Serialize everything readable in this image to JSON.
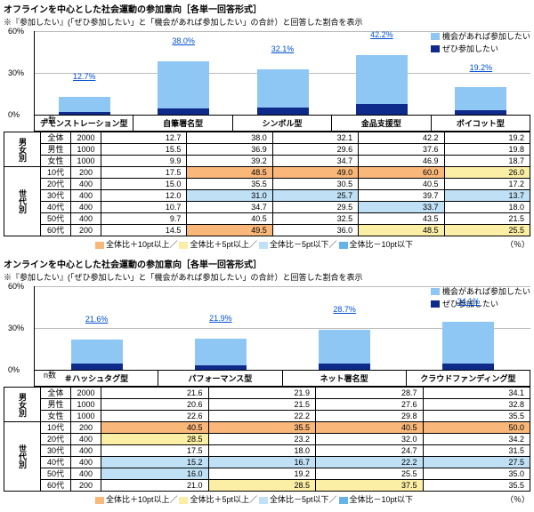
{
  "colors": {
    "light": "#8ec6f4",
    "dark": "#0e2a8a",
    "hi10": "#f9b77a",
    "hi5": "#fbeea5",
    "lo5": "#bfe0f5",
    "lo10": "#66b3e8",
    "grid": "#bbbbbb"
  },
  "legend": {
    "light": "機会があれば参加したい",
    "dark": "ぜひ参加したい"
  },
  "legend_bottom": {
    "hi10": "全体比＋10pt以上／",
    "hi5": "全体比＋5pt以上／",
    "lo5": "全体比－5pt以下／",
    "lo10": "全体比－10pt以下",
    "pct": "（％）"
  },
  "row_groups": [
    {
      "label": "男女別",
      "rows": [
        "全体",
        "男性",
        "女性"
      ]
    },
    {
      "label": "世代別",
      "rows": [
        "10代",
        "20代",
        "30代",
        "40代",
        "50代",
        "60代"
      ]
    }
  ],
  "n_label": "n数",
  "n_values": [
    "2000",
    "1000",
    "1000",
    "200",
    "400",
    "400",
    "400",
    "400",
    "200"
  ],
  "ymax": 60,
  "yticks": [
    0,
    30,
    60
  ],
  "sections": [
    {
      "title": "オフラインを中心とした社会運動の参加意向［各単一回答形式］",
      "note": "※『参加したい』(「ぜひ参加したい」と「機会があれば参加したい」の合計）と回答した割合を表示",
      "cats": [
        "デモンストレーション型",
        "自筆署名型",
        "シンボル型",
        "金品支援型",
        "ボイコット型"
      ],
      "bars": [
        {
          "total": 12.7,
          "light": 10.8,
          "dark": 1.9
        },
        {
          "total": 38.0,
          "light": 33.7,
          "dark": 4.3
        },
        {
          "total": 32.1,
          "light": 26.9,
          "dark": 5.3
        },
        {
          "total": 42.2,
          "light": 34.5,
          "dark": 7.8
        },
        {
          "total": 19.2,
          "light": 16.4,
          "dark": 2.9
        }
      ],
      "table": [
        [
          {
            "v": 12.7
          },
          {
            "v": 38.0
          },
          {
            "v": 32.1
          },
          {
            "v": 42.2
          },
          {
            "v": 19.2
          }
        ],
        [
          {
            "v": 15.5
          },
          {
            "v": 36.9
          },
          {
            "v": 29.6
          },
          {
            "v": 37.6
          },
          {
            "v": 19.8
          }
        ],
        [
          {
            "v": 9.9
          },
          {
            "v": 39.2
          },
          {
            "v": 34.7
          },
          {
            "v": 46.9
          },
          {
            "v": 18.7
          }
        ],
        [
          {
            "v": 17.5
          },
          {
            "v": 48.5,
            "h": "hi10"
          },
          {
            "v": 49.0,
            "h": "hi10"
          },
          {
            "v": 60.0,
            "h": "hi10"
          },
          {
            "v": 26.0,
            "h": "hi5"
          }
        ],
        [
          {
            "v": 15.0
          },
          {
            "v": 35.5
          },
          {
            "v": 30.5
          },
          {
            "v": 40.5
          },
          {
            "v": 17.2
          }
        ],
        [
          {
            "v": 12.0
          },
          {
            "v": 31.0,
            "h": "lo5"
          },
          {
            "v": 25.7,
            "h": "lo5"
          },
          {
            "v": 39.7
          },
          {
            "v": 13.7,
            "h": "lo5"
          }
        ],
        [
          {
            "v": 10.7
          },
          {
            "v": 34.7
          },
          {
            "v": 29.5
          },
          {
            "v": 33.7,
            "h": "lo5"
          },
          {
            "v": 18.0
          }
        ],
        [
          {
            "v": 9.7
          },
          {
            "v": 40.5
          },
          {
            "v": 32.5
          },
          {
            "v": 43.5
          },
          {
            "v": 21.5
          }
        ],
        [
          {
            "v": 14.5
          },
          {
            "v": 49.5,
            "h": "hi10"
          },
          {
            "v": 36.0
          },
          {
            "v": 48.5,
            "h": "hi5"
          },
          {
            "v": 25.5,
            "h": "hi5"
          }
        ]
      ]
    },
    {
      "title": "オンラインを中心とした社会運動の参加意向［各単一回答形式］",
      "note": "※『参加したい』(「ぜひ参加したい」と「機会があれば参加したい」の合計）と回答した割合を表示",
      "cats": [
        "＃ハッシュタグ型",
        "パフォーマンス型",
        "ネット署名型",
        "クラウドファンディング型"
      ],
      "bars": [
        {
          "total": 21.6,
          "light": 16.9,
          "dark": 4.7
        },
        {
          "total": 21.9,
          "light": 18.8,
          "dark": 3.1
        },
        {
          "total": 28.7,
          "light": 24.4,
          "dark": 4.3
        },
        {
          "total": 34.1,
          "light": 29.9,
          "dark": 4.2
        }
      ],
      "table": [
        [
          {
            "v": 21.6
          },
          {
            "v": 21.9
          },
          {
            "v": 28.7
          },
          {
            "v": 34.1
          }
        ],
        [
          {
            "v": 20.6
          },
          {
            "v": 21.5
          },
          {
            "v": 27.6
          },
          {
            "v": 32.8
          }
        ],
        [
          {
            "v": 22.6
          },
          {
            "v": 22.2
          },
          {
            "v": 29.8
          },
          {
            "v": 35.5
          }
        ],
        [
          {
            "v": 40.5,
            "h": "hi10"
          },
          {
            "v": 35.5,
            "h": "hi10"
          },
          {
            "v": 40.5,
            "h": "hi10"
          },
          {
            "v": 50.0,
            "h": "hi10"
          }
        ],
        [
          {
            "v": 28.5,
            "h": "hi5"
          },
          {
            "v": 23.2
          },
          {
            "v": 32.0
          },
          {
            "v": 34.2
          }
        ],
        [
          {
            "v": 17.5
          },
          {
            "v": 18.0
          },
          {
            "v": 24.7
          },
          {
            "v": 31.5
          }
        ],
        [
          {
            "v": 15.2,
            "h": "lo5"
          },
          {
            "v": 16.7,
            "h": "lo5"
          },
          {
            "v": 22.2,
            "h": "lo5"
          },
          {
            "v": 27.5,
            "h": "lo5"
          }
        ],
        [
          {
            "v": 16.0,
            "h": "lo5"
          },
          {
            "v": 19.2
          },
          {
            "v": 25.5
          },
          {
            "v": 35.0
          }
        ],
        [
          {
            "v": 21.0
          },
          {
            "v": 28.5,
            "h": "hi5"
          },
          {
            "v": 37.5,
            "h": "hi5"
          },
          {
            "v": 35.5
          }
        ]
      ]
    }
  ]
}
